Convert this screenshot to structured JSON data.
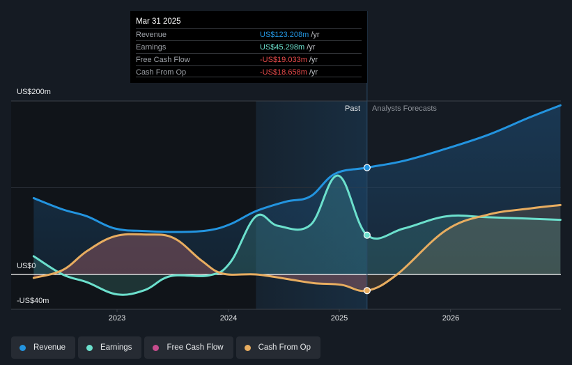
{
  "tooltip": {
    "date": "Mar 31 2025",
    "rows": [
      {
        "label": "Revenue",
        "value": "US$123.208m",
        "unit": "/yr",
        "color": "#2394df"
      },
      {
        "label": "Earnings",
        "value": "US$45.298m",
        "unit": "/yr",
        "color": "#6ce0cd"
      },
      {
        "label": "Free Cash Flow",
        "value": "-US$19.033m",
        "unit": "/yr",
        "color": "#e84b4b"
      },
      {
        "label": "Cash From Op",
        "value": "-US$18.658m",
        "unit": "/yr",
        "color": "#e84b4b"
      }
    ]
  },
  "labels": {
    "past": "Past",
    "forecast": "Analysts Forecasts"
  },
  "legend": [
    {
      "label": "Revenue",
      "color": "#2394df"
    },
    {
      "label": "Earnings",
      "color": "#6ce0cd"
    },
    {
      "label": "Free Cash Flow",
      "color": "#c64c8d"
    },
    {
      "label": "Cash From Op",
      "color": "#e8ad60"
    }
  ],
  "chart_data": {
    "type": "area",
    "title": "",
    "xlabel": "",
    "ylabel": "",
    "ylim": [
      -40,
      200
    ],
    "xlim": [
      2022.25,
      2027.0
    ],
    "yticks": [
      {
        "value": 200,
        "label": "US$200m"
      },
      {
        "value": 0,
        "label": "US$0"
      },
      {
        "value": -40,
        "label": "-US$40m"
      }
    ],
    "gridlines": [
      200,
      100
    ],
    "xticks": [
      {
        "value": 2023,
        "label": "2023"
      },
      {
        "value": 2024,
        "label": "2024"
      },
      {
        "value": 2025,
        "label": "2025"
      },
      {
        "value": 2026,
        "label": "2026"
      }
    ],
    "past_end": 2025.25,
    "highlight_start": 2024.25,
    "legend_position": "bottom-left",
    "series": [
      {
        "name": "Revenue",
        "color": "#2394df",
        "x": [
          2022.25,
          2022.51,
          2022.73,
          2022.98,
          2023.26,
          2023.58,
          2023.83,
          2024.02,
          2024.25,
          2024.52,
          2024.74,
          2024.96,
          2025.25,
          2025.58,
          2025.96,
          2026.34,
          2026.71,
          2026.99
        ],
        "y": [
          88,
          75,
          67,
          53,
          50,
          49,
          51,
          58,
          73,
          84,
          90,
          116,
          123.2,
          131,
          145,
          161,
          181,
          195
        ]
      },
      {
        "name": "Earnings",
        "color": "#6ce0cd",
        "x": [
          2022.25,
          2022.51,
          2022.73,
          2023.0,
          2023.25,
          2023.48,
          2023.83,
          2024.02,
          2024.25,
          2024.45,
          2024.74,
          2024.99,
          2025.25,
          2025.58,
          2025.96,
          2026.34,
          2026.99
        ],
        "y": [
          21,
          0,
          -9,
          -23,
          -18,
          -2,
          -1,
          14,
          67,
          56,
          57,
          114,
          45.3,
          53,
          67,
          66,
          63
        ]
      },
      {
        "name": "Free Cash Flow",
        "color": "#c64c8d",
        "x": [
          2022.25,
          2022.51,
          2022.73,
          2022.98,
          2023.26,
          2023.51,
          2023.76,
          2023.95,
          2024.25,
          2024.52,
          2024.77,
          2025.02,
          2025.25
        ],
        "y": [
          -4,
          5,
          27,
          44,
          46,
          42,
          16,
          1,
          0,
          -5,
          -10,
          -12,
          -19.0
        ]
      },
      {
        "name": "Cash From Op",
        "color": "#e8ad60",
        "x": [
          2022.25,
          2022.51,
          2022.73,
          2022.98,
          2023.26,
          2023.51,
          2023.76,
          2023.95,
          2024.25,
          2024.52,
          2024.77,
          2025.02,
          2025.25,
          2025.52,
          2025.96,
          2026.34,
          2026.71,
          2026.99
        ],
        "y": [
          -4,
          5,
          27,
          44,
          46,
          42,
          16,
          1,
          0,
          -5,
          -10,
          -12,
          -18.7,
          0,
          51,
          69,
          76,
          80
        ]
      }
    ]
  }
}
